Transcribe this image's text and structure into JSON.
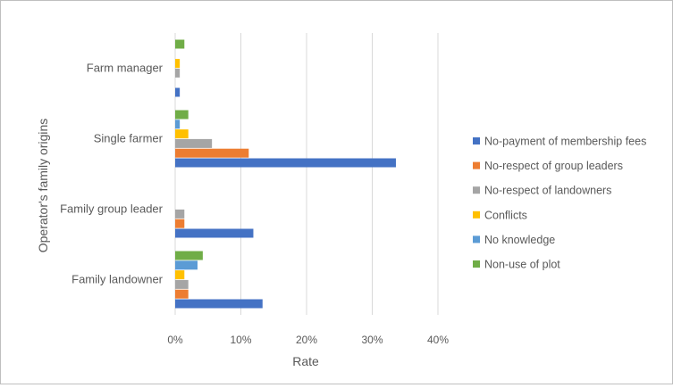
{
  "chart_data": {
    "type": "bar",
    "orientation": "horizontal",
    "title": "",
    "xlabel": "Rate",
    "ylabel": "Operator's family origins",
    "xlim": [
      0,
      40
    ],
    "x_ticks": [
      "0%",
      "10%",
      "20%",
      "30%",
      "40%"
    ],
    "x_unit": "%",
    "grid": true,
    "legend_position": "right",
    "categories": [
      "Farm manager",
      "Single farmer",
      "Family group leader",
      "Family landowner"
    ],
    "series": [
      {
        "name": "Non-use of plot",
        "color": "#70ad47",
        "values": [
          1.4,
          2.0,
          0,
          4.2
        ]
      },
      {
        "name": "No knowledge",
        "color": "#5b9bd5",
        "values": [
          0,
          0.7,
          0,
          3.4
        ]
      },
      {
        "name": "Conflicts",
        "color": "#ffc000",
        "values": [
          0.7,
          2.0,
          0,
          1.4
        ]
      },
      {
        "name": "No-respect of landowners",
        "color": "#a5a5a5",
        "values": [
          0.7,
          5.6,
          1.4,
          2.0
        ]
      },
      {
        "name": "No-respect of group leaders",
        "color": "#ed7d31",
        "values": [
          0,
          11.2,
          1.4,
          2.0
        ]
      },
      {
        "name": "No-payment of membership fees",
        "color": "#4472c4",
        "values": [
          0.7,
          33.6,
          11.9,
          13.3
        ]
      }
    ]
  }
}
